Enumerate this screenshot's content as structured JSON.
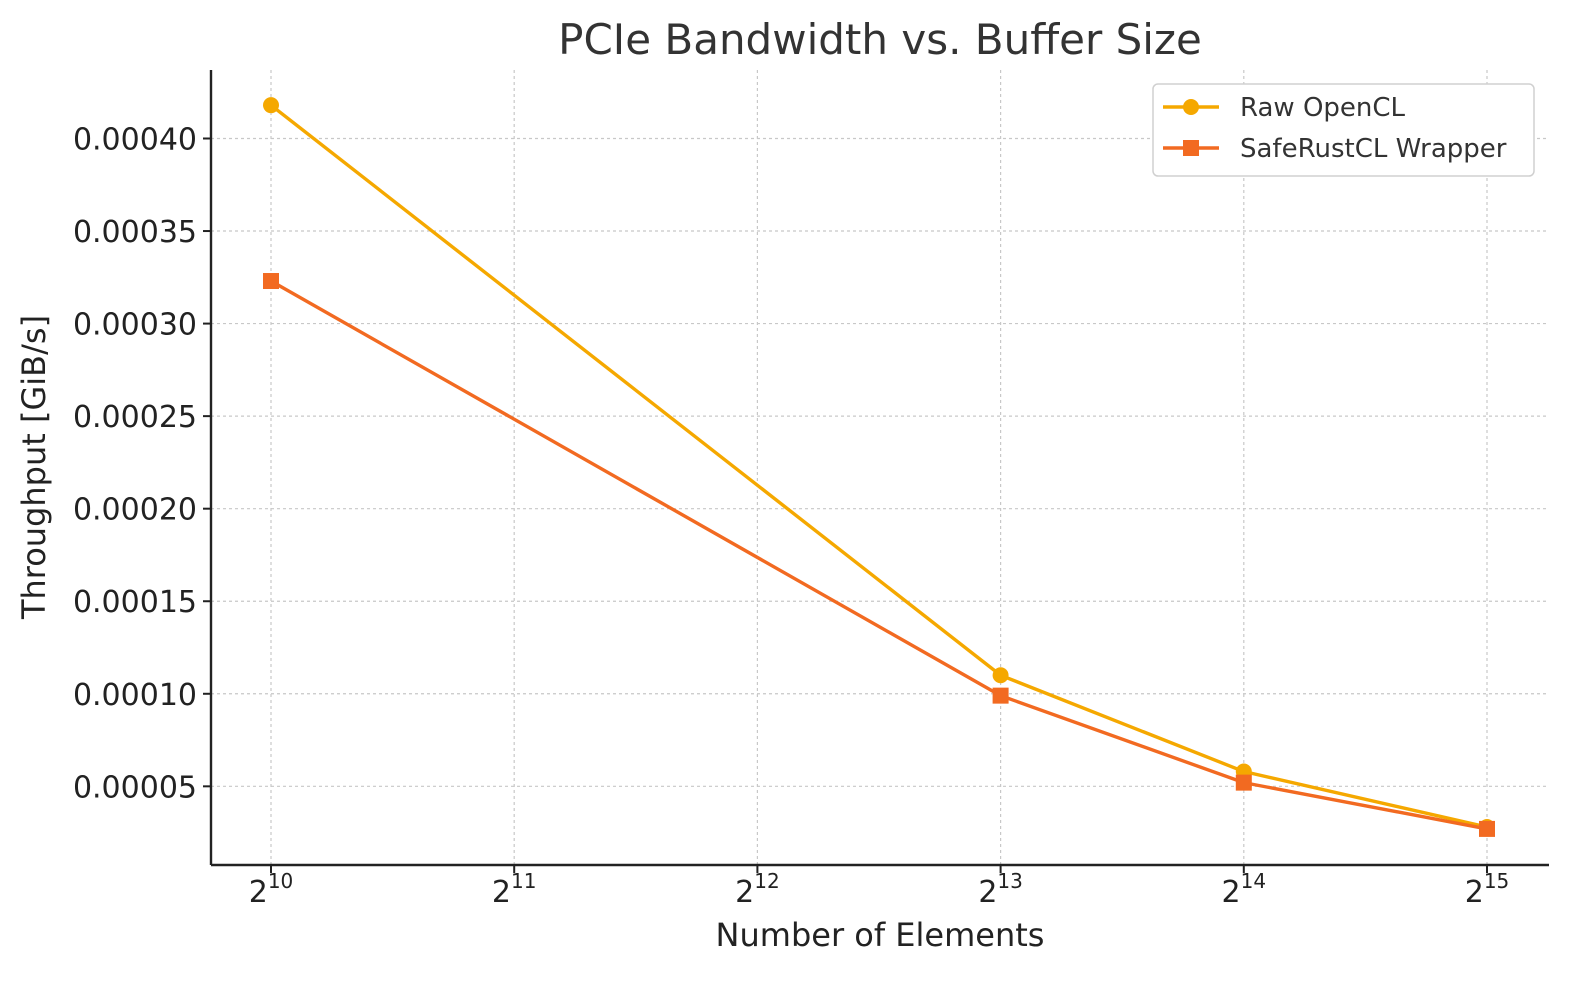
{
  "chart_data": {
    "type": "line",
    "title": "PCIe Bandwidth vs. Buffer Size",
    "xlabel": "Number of Elements",
    "ylabel": "Throughput [GiB/s]",
    "x_scale": "log2",
    "x_ticks": [
      {
        "base": "2",
        "exp": "10",
        "value": 1024
      },
      {
        "base": "2",
        "exp": "11",
        "value": 2048
      },
      {
        "base": "2",
        "exp": "12",
        "value": 4096
      },
      {
        "base": "2",
        "exp": "13",
        "value": 8192
      },
      {
        "base": "2",
        "exp": "14",
        "value": 16384
      },
      {
        "base": "2",
        "exp": "15",
        "value": 32768
      }
    ],
    "y_ticks": [
      "0.00005",
      "0.00010",
      "0.00015",
      "0.00020",
      "0.00025",
      "0.00030",
      "0.00035",
      "0.00040"
    ],
    "ylim": [
      7.5e-06,
      0.000437
    ],
    "x": [
      1024,
      8192,
      16384,
      32768
    ],
    "grid": true,
    "legend_position": "top-right",
    "series": [
      {
        "name": "Raw OpenCL",
        "color": "#f5a800",
        "marker": "circle",
        "values": [
          0.000418,
          0.00011,
          5.8e-05,
          2.8e-05
        ]
      },
      {
        "name": "SafeRustCL Wrapper",
        "color": "#f26a21",
        "marker": "square",
        "values": [
          0.000323,
          9.9e-05,
          5.2e-05,
          2.7e-05
        ]
      }
    ]
  }
}
